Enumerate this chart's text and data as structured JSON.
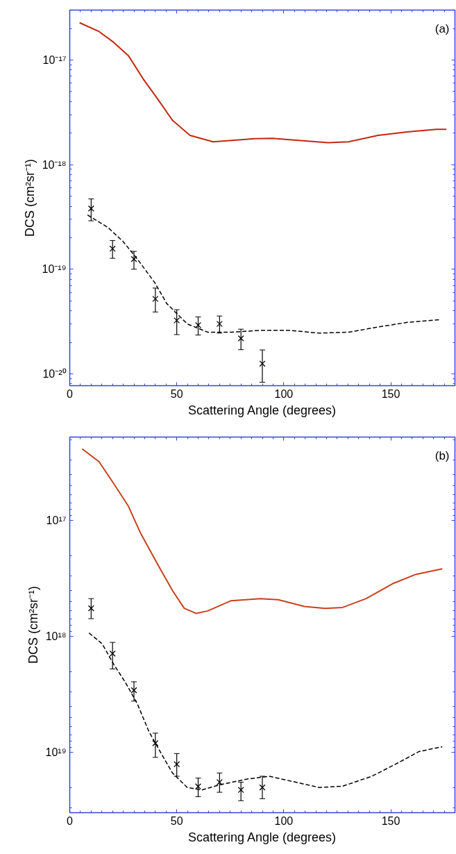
{
  "chart_data": [
    {
      "type": "line",
      "xlabel": "Scattering Angle (degrees)",
      "ylabel": "DCS (cm²sr⁻¹)",
      "annotations": [
        "(a)"
      ],
      "log": "y",
      "grid": false,
      "xlim": [
        0,
        180
      ],
      "xticks": [
        0,
        50,
        100,
        150
      ],
      "ylim": [
        7.7e-21,
        3e-17
      ],
      "yticks": [
        {
          "value": 1e-20,
          "label": "10⁻²⁰"
        },
        {
          "value": 1e-19,
          "label": "10⁻¹⁹"
        },
        {
          "value": 1e-18,
          "label": "10⁻¹⁸"
        },
        {
          "value": 1e-17,
          "label": "10⁻¹⁷"
        }
      ],
      "series": [
        {
          "color": "#c0280f",
          "line_style": "solid",
          "x": [
            4.6,
            13.7,
            20.6,
            27.4,
            34.3,
            41.2,
            48,
            56.2,
            67,
            86.4,
            94.6,
            120.7,
            130.3,
            144,
            157.6,
            171.4,
            176
          ],
          "values": [
            2.27e-17,
            1.87e-17,
            1.47e-17,
            1.1e-17,
            6.6e-18,
            4.2e-18,
            2.65e-18,
            1.9e-18,
            1.65e-18,
            1.77e-18,
            1.78e-18,
            1.62e-18,
            1.65e-18,
            1.9e-18,
            2.05e-18,
            2.17e-18,
            2.17e-18
          ]
        },
        {
          "color": "#000000",
          "line_style": "dashed",
          "x": [
            8.3,
            17.9,
            24.8,
            31.6,
            39.8,
            45.3,
            54.9,
            64.5,
            75.4,
            89.1,
            102.9,
            116.5,
            130.3,
            144,
            157.7,
            173.4
          ],
          "values": [
            3.3e-19,
            2.5e-19,
            1.85e-19,
            1.25e-19,
            7.4e-20,
            4.7e-20,
            3e-20,
            2.5e-20,
            2.5e-20,
            2.6e-20,
            2.6e-20,
            2.45e-20,
            2.5e-20,
            2.8e-20,
            3.1e-20,
            3.3e-20
          ]
        },
        {
          "type": "scatter",
          "color": "#000000",
          "marker": "cross",
          "x": [
            10,
            20,
            30,
            40,
            50,
            60,
            70,
            80,
            90
          ],
          "values": [
            3.8e-19,
            1.57e-19,
            1.25e-19,
            5.2e-20,
            3.24e-20,
            2.92e-20,
            3e-20,
            2.18e-20,
            1.25e-20
          ],
          "errors": [
            [
              2.9e-19,
              4.7e-19
            ],
            [
              1.27e-19,
              1.88e-19
            ],
            [
              1e-19,
              1.48e-19
            ],
            [
              3.9e-20,
              6.6e-20
            ],
            [
              2.37e-20,
              4.1e-20
            ],
            [
              2.35e-20,
              3.5e-20
            ],
            [
              2.45e-20,
              3.57e-20
            ],
            [
              1.7e-20,
              2.67e-20
            ],
            [
              8.3e-21,
              1.69e-20
            ]
          ]
        }
      ]
    },
    {
      "type": "line",
      "xlabel": "Scattering Angle (degrees)",
      "ylabel": "DCS (cm²sr⁻¹)",
      "annotations": [
        "(b)"
      ],
      "log": "y",
      "grid": false,
      "xlim": [
        0,
        180
      ],
      "xticks": [
        0,
        50,
        100,
        150
      ],
      "ylim": [
        3.3e+19,
        1.9e+16
      ],
      "yticks": [
        {
          "value": 1e+17,
          "label": "10¹⁷"
        },
        {
          "value": 1e+18,
          "label": "10¹⁸"
        },
        {
          "value": 1e+19,
          "label": "10¹⁹"
        }
      ],
      "series": [
        {
          "color": "#c8401e",
          "line_style": "solid",
          "x": [
            5.8,
            13.7,
            20.6,
            27.4,
            32.9,
            41.2,
            48,
            53.5,
            59,
            64.5,
            75.4,
            89.1,
            97.4,
            109.7,
            119.3,
            127.5,
            138.5,
            150.8,
            161.8,
            174.1
          ],
          "values": [
            2.4e+16,
            3.1e+16,
            4.8e+16,
            7.5e+16,
            1.26e+17,
            2.4e+17,
            4e+17,
            5.7e+17,
            6.3e+17,
            6e+17,
            4.9e+17,
            4.7e+17,
            4.8e+17,
            5.5e+17,
            5.7e+17,
            5.6e+17,
            4.7e+17,
            3.5e+17,
            2.9e+17,
            2.6e+17
          ]
        },
        {
          "color": "#000000",
          "line_style": "dashed",
          "x": [
            9,
            15.1,
            20.6,
            26.1,
            31.6,
            37,
            42.5,
            48,
            54.9,
            61.7,
            69.9,
            82.2,
            93.2,
            105.6,
            116.5,
            127.5,
            141.2,
            152.2,
            163.2,
            174.1
          ],
          "values": [
            9.3e+17,
            1.15e+18,
            1.74e+18,
            2.5e+18,
            3.8e+18,
            6.6e+18,
            1e+19,
            1.5e+19,
            2e+19,
            2.1e+19,
            1.9e+19,
            1.7e+19,
            1.6e+19,
            1.8e+19,
            2e+19,
            1.95e+19,
            1.6e+19,
            1.26e+19,
            9.8e+18,
            8.9e+18
          ]
        },
        {
          "type": "scatter",
          "color": "#000000",
          "marker": "cross",
          "x": [
            10,
            20,
            30,
            40,
            50,
            60,
            70,
            80,
            90
          ],
          "values": [
            5.7e+17,
            1.4e+18,
            2.9e+18,
            8.3e+18,
            1.26e+19,
            1.96e+19,
            1.8e+19,
            2.1e+19,
            2e+19
          ],
          "errors": [
            [
              4.7e+17,
              7e+17
            ],
            [
              1.12e+18,
              1.9e+18
            ],
            [
              2.45e+18,
              3.6e+18
            ],
            [
              6.8e+18,
              1.1e+19
            ],
            [
              1.02e+19,
              1.6e+19
            ],
            [
              1.66e+19,
              2.4e+19
            ],
            [
              1.5e+19,
              2.2e+19
            ],
            [
              1.8e+19,
              2.6e+19
            ],
            [
              1.6e+19,
              2.5e+19
            ]
          ]
        }
      ]
    }
  ]
}
